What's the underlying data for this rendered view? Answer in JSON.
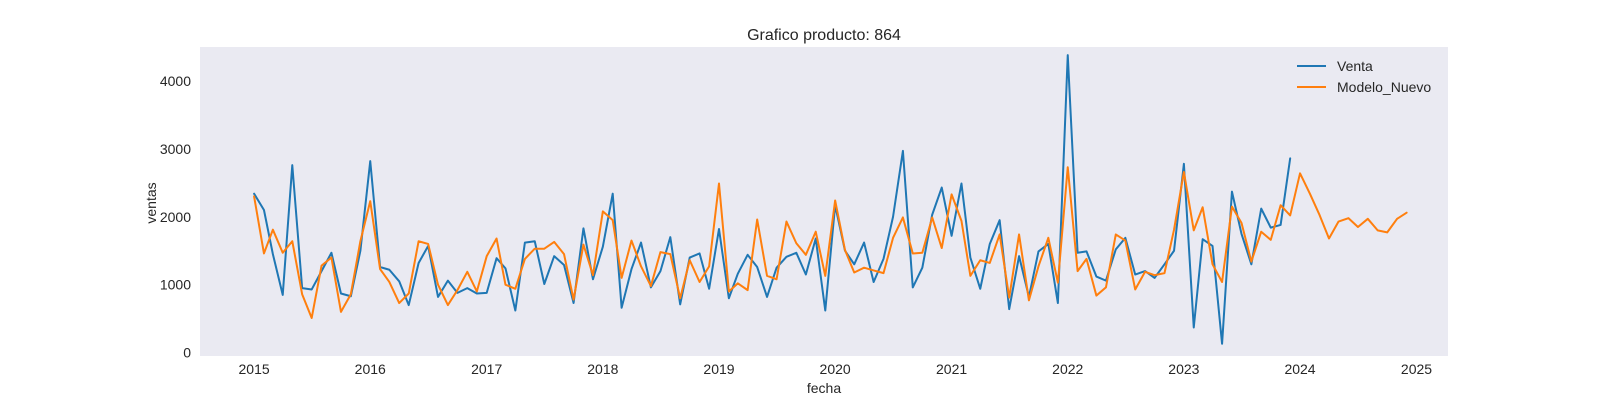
{
  "chart_data": {
    "type": "line",
    "title": "Grafico producto: 864",
    "xlabel": "fecha",
    "ylabel": "ventas",
    "xlim": [
      "2014-07-15",
      "2025-04-10"
    ],
    "ylim": [
      -50,
      4500
    ],
    "x_ticks": [
      "2015",
      "2016",
      "2017",
      "2018",
      "2019",
      "2020",
      "2021",
      "2022",
      "2023",
      "2024",
      "2025"
    ],
    "y_ticks": [
      0,
      1000,
      2000,
      3000,
      4000
    ],
    "grid": false,
    "legend_position": "top-right",
    "colors": {
      "background": "#eaeaf2",
      "series_0": "#1f77b4",
      "series_1": "#ff7f0e"
    },
    "series": [
      {
        "name": "Venta",
        "x": [
          "2015-01",
          "2015-02",
          "2015-03",
          "2015-04",
          "2015-05",
          "2015-06",
          "2015-07",
          "2015-08",
          "2015-09",
          "2015-10",
          "2015-11",
          "2015-12",
          "2016-01",
          "2016-02",
          "2016-03",
          "2016-04",
          "2016-05",
          "2016-06",
          "2016-07",
          "2016-08",
          "2016-09",
          "2016-10",
          "2016-11",
          "2016-12",
          "2017-01",
          "2017-02",
          "2017-03",
          "2017-04",
          "2017-05",
          "2017-06",
          "2017-07",
          "2017-08",
          "2017-09",
          "2017-10",
          "2017-11",
          "2017-12",
          "2018-01",
          "2018-02",
          "2018-03",
          "2018-04",
          "2018-05",
          "2018-06",
          "2018-07",
          "2018-08",
          "2018-09",
          "2018-10",
          "2018-11",
          "2018-12",
          "2019-01",
          "2019-02",
          "2019-03",
          "2019-04",
          "2019-05",
          "2019-06",
          "2019-07",
          "2019-08",
          "2019-09",
          "2019-10",
          "2019-11",
          "2019-12",
          "2020-01",
          "2020-02",
          "2020-03",
          "2020-04",
          "2020-05",
          "2020-06",
          "2020-07",
          "2020-08",
          "2020-09",
          "2020-10",
          "2020-11",
          "2020-12",
          "2021-01",
          "2021-02",
          "2021-03",
          "2021-04",
          "2021-05",
          "2021-06",
          "2021-07",
          "2021-08",
          "2021-09",
          "2021-10",
          "2021-11",
          "2021-12",
          "2022-01",
          "2022-02",
          "2022-03",
          "2022-04",
          "2022-05",
          "2022-06",
          "2022-07",
          "2022-08",
          "2022-09",
          "2022-10",
          "2022-11",
          "2022-12",
          "2023-01",
          "2023-02",
          "2023-03",
          "2023-04",
          "2023-05",
          "2023-06",
          "2023-07",
          "2023-08",
          "2023-09",
          "2023-10",
          "2023-11",
          "2023-12"
        ],
        "values": [
          2340,
          2100,
          1450,
          850,
          2760,
          950,
          930,
          1200,
          1470,
          870,
          830,
          1500,
          2820,
          1260,
          1220,
          1050,
          700,
          1320,
          1570,
          820,
          1060,
          880,
          950,
          870,
          880,
          1390,
          1240,
          620,
          1620,
          1640,
          1010,
          1420,
          1290,
          730,
          1830,
          1080,
          1560,
          2340,
          660,
          1230,
          1620,
          960,
          1200,
          1700,
          710,
          1400,
          1460,
          940,
          1820,
          800,
          1160,
          1440,
          1260,
          820,
          1250,
          1410,
          1470,
          1150,
          1680,
          620,
          2170,
          1500,
          1300,
          1620,
          1040,
          1380,
          2000,
          2970,
          960,
          1250,
          2030,
          2430,
          1720,
          2490,
          1400,
          940,
          1600,
          1950,
          640,
          1420,
          820,
          1490,
          1600,
          730,
          4380,
          1470,
          1490,
          1120,
          1060,
          1520,
          1690,
          1150,
          1200,
          1100,
          1300,
          1500,
          2780,
          370,
          1670,
          1570,
          130,
          2370,
          1750,
          1300,
          2120,
          1840,
          1880,
          2860
        ]
      },
      {
        "name": "Modelo_Nuevo",
        "x": [
          "2015-01",
          "2015-02",
          "2015-03",
          "2015-04",
          "2015-05",
          "2015-06",
          "2015-07",
          "2015-08",
          "2015-09",
          "2015-10",
          "2015-11",
          "2015-12",
          "2016-01",
          "2016-02",
          "2016-03",
          "2016-04",
          "2016-05",
          "2016-06",
          "2016-07",
          "2016-08",
          "2016-09",
          "2016-10",
          "2016-11",
          "2016-12",
          "2017-01",
          "2017-02",
          "2017-03",
          "2017-04",
          "2017-05",
          "2017-06",
          "2017-07",
          "2017-08",
          "2017-09",
          "2017-10",
          "2017-11",
          "2017-12",
          "2018-01",
          "2018-02",
          "2018-03",
          "2018-04",
          "2018-05",
          "2018-06",
          "2018-07",
          "2018-08",
          "2018-09",
          "2018-10",
          "2018-11",
          "2018-12",
          "2019-01",
          "2019-02",
          "2019-03",
          "2019-04",
          "2019-05",
          "2019-06",
          "2019-07",
          "2019-08",
          "2019-09",
          "2019-10",
          "2019-11",
          "2019-12",
          "2020-01",
          "2020-02",
          "2020-03",
          "2020-04",
          "2020-05",
          "2020-06",
          "2020-07",
          "2020-08",
          "2020-09",
          "2020-10",
          "2020-11",
          "2020-12",
          "2021-01",
          "2021-02",
          "2021-03",
          "2021-04",
          "2021-05",
          "2021-06",
          "2021-07",
          "2021-08",
          "2021-09",
          "2021-10",
          "2021-11",
          "2021-12",
          "2022-01",
          "2022-02",
          "2022-03",
          "2022-04",
          "2022-05",
          "2022-06",
          "2022-07",
          "2022-08",
          "2022-09",
          "2022-10",
          "2022-11",
          "2022-12",
          "2023-01",
          "2023-02",
          "2023-03",
          "2023-04",
          "2023-05",
          "2023-06",
          "2023-07",
          "2023-08",
          "2023-09",
          "2023-10",
          "2023-11",
          "2023-12",
          "2024-01",
          "2024-02",
          "2024-03",
          "2024-04",
          "2024-05",
          "2024-06",
          "2024-07",
          "2024-08",
          "2024-09",
          "2024-10",
          "2024-11",
          "2024-12"
        ],
        "values": [
          2300,
          1460,
          1810,
          1470,
          1640,
          860,
          510,
          1280,
          1400,
          600,
          860,
          1640,
          2230,
          1230,
          1040,
          730,
          870,
          1640,
          1600,
          1000,
          700,
          920,
          1190,
          900,
          1420,
          1680,
          1000,
          940,
          1380,
          1530,
          1530,
          1630,
          1450,
          780,
          1590,
          1140,
          2080,
          1950,
          1100,
          1650,
          1270,
          980,
          1480,
          1450,
          800,
          1360,
          1040,
          1270,
          2490,
          900,
          1020,
          920,
          1960,
          1130,
          1080,
          1930,
          1610,
          1440,
          1780,
          1130,
          2240,
          1510,
          1180,
          1250,
          1210,
          1170,
          1690,
          1990,
          1460,
          1470,
          1990,
          1540,
          2330,
          1940,
          1130,
          1360,
          1320,
          1740,
          810,
          1740,
          770,
          1270,
          1690,
          1030,
          2730,
          1200,
          1380,
          840,
          960,
          1740,
          1650,
          930,
          1190,
          1140,
          1170,
          1810,
          2660,
          1800,
          2140,
          1300,
          1040,
          2150,
          1910,
          1340,
          1780,
          1660,
          2170,
          2020,
          2640,
          2340,
          2040,
          1680,
          1930,
          1980,
          1850,
          1970,
          1800,
          1770,
          1970,
          2060
        ]
      }
    ]
  }
}
